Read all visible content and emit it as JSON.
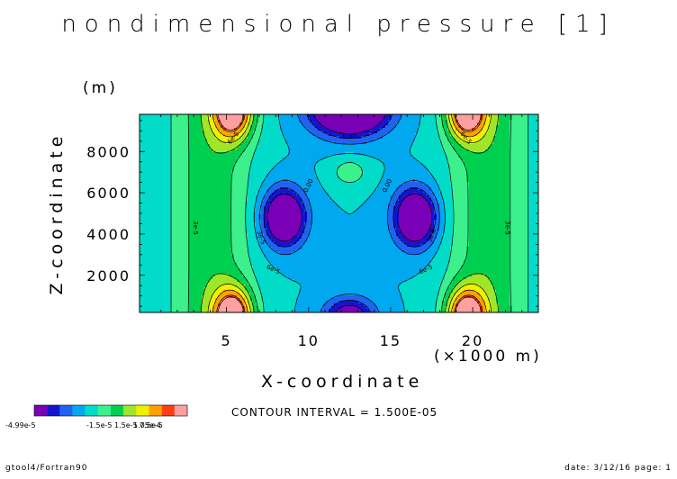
{
  "chart_data": {
    "type": "heatmap",
    "title": "nondimensional pressure [1]",
    "xlabel": "X-coordinate",
    "x_unit": "(×1000 m)",
    "ylabel": "Z-coordinate",
    "y_unit": "(m)",
    "xlim": [
      0,
      24
    ],
    "ylim": [
      200,
      9800
    ],
    "x_ticks": [
      "5",
      "10",
      "15",
      "20"
    ],
    "y_ticks": [
      "2000",
      "4000",
      "6000",
      "8000"
    ],
    "contour_labels": [
      "0.00",
      "6e-5",
      "3e-5"
    ],
    "contour_interval": "CONTOUR INTERVAL = 1.500E-05",
    "levels": [
      -4.99e-05,
      -3.5e-05,
      -2e-05,
      -5e-06,
      1e-05,
      2.5e-05,
      4e-05,
      5.5e-05,
      7e-05,
      8.5e-05,
      0.0001,
      0.000105
    ],
    "colors": [
      "#7a00b8",
      "#1414d2",
      "#1e64f0",
      "#00a8f0",
      "#00dcc8",
      "#3cf08c",
      "#00d050",
      "#a0e628",
      "#f0f000",
      "#ffa000",
      "#ff3c14",
      "#ffa0a0"
    ],
    "colorbar_labels": {
      "min": "-4.99e-5",
      "mid": "-1.5e-5 1.5e-5 7.5e-5",
      "max": "1.05e-4"
    },
    "features": [
      {
        "x": 8.5,
        "z": 4800,
        "value": -4.99e-05,
        "kind": "minimum"
      },
      {
        "x": 16.5,
        "z": 4800,
        "value": -4.99e-05,
        "kind": "minimum"
      },
      {
        "x": 12.5,
        "z": 9800,
        "value": -4.99e-05,
        "kind": "minimum"
      },
      {
        "x": 5.5,
        "z": 9500,
        "value": 0.000105,
        "kind": "maximum"
      },
      {
        "x": 19.5,
        "z": 9500,
        "value": 0.000105,
        "kind": "maximum"
      },
      {
        "x": 5.5,
        "z": 500,
        "value": 0.000105,
        "kind": "maximum"
      },
      {
        "x": 19.5,
        "z": 500,
        "value": 0.000105,
        "kind": "maximum"
      },
      {
        "x": 12.5,
        "z": 7000,
        "value": 3e-05,
        "kind": "local maximum"
      }
    ]
  },
  "footer": {
    "left": "gtool4/Fortran90",
    "right": "date: 3/12/16 page: 1"
  }
}
